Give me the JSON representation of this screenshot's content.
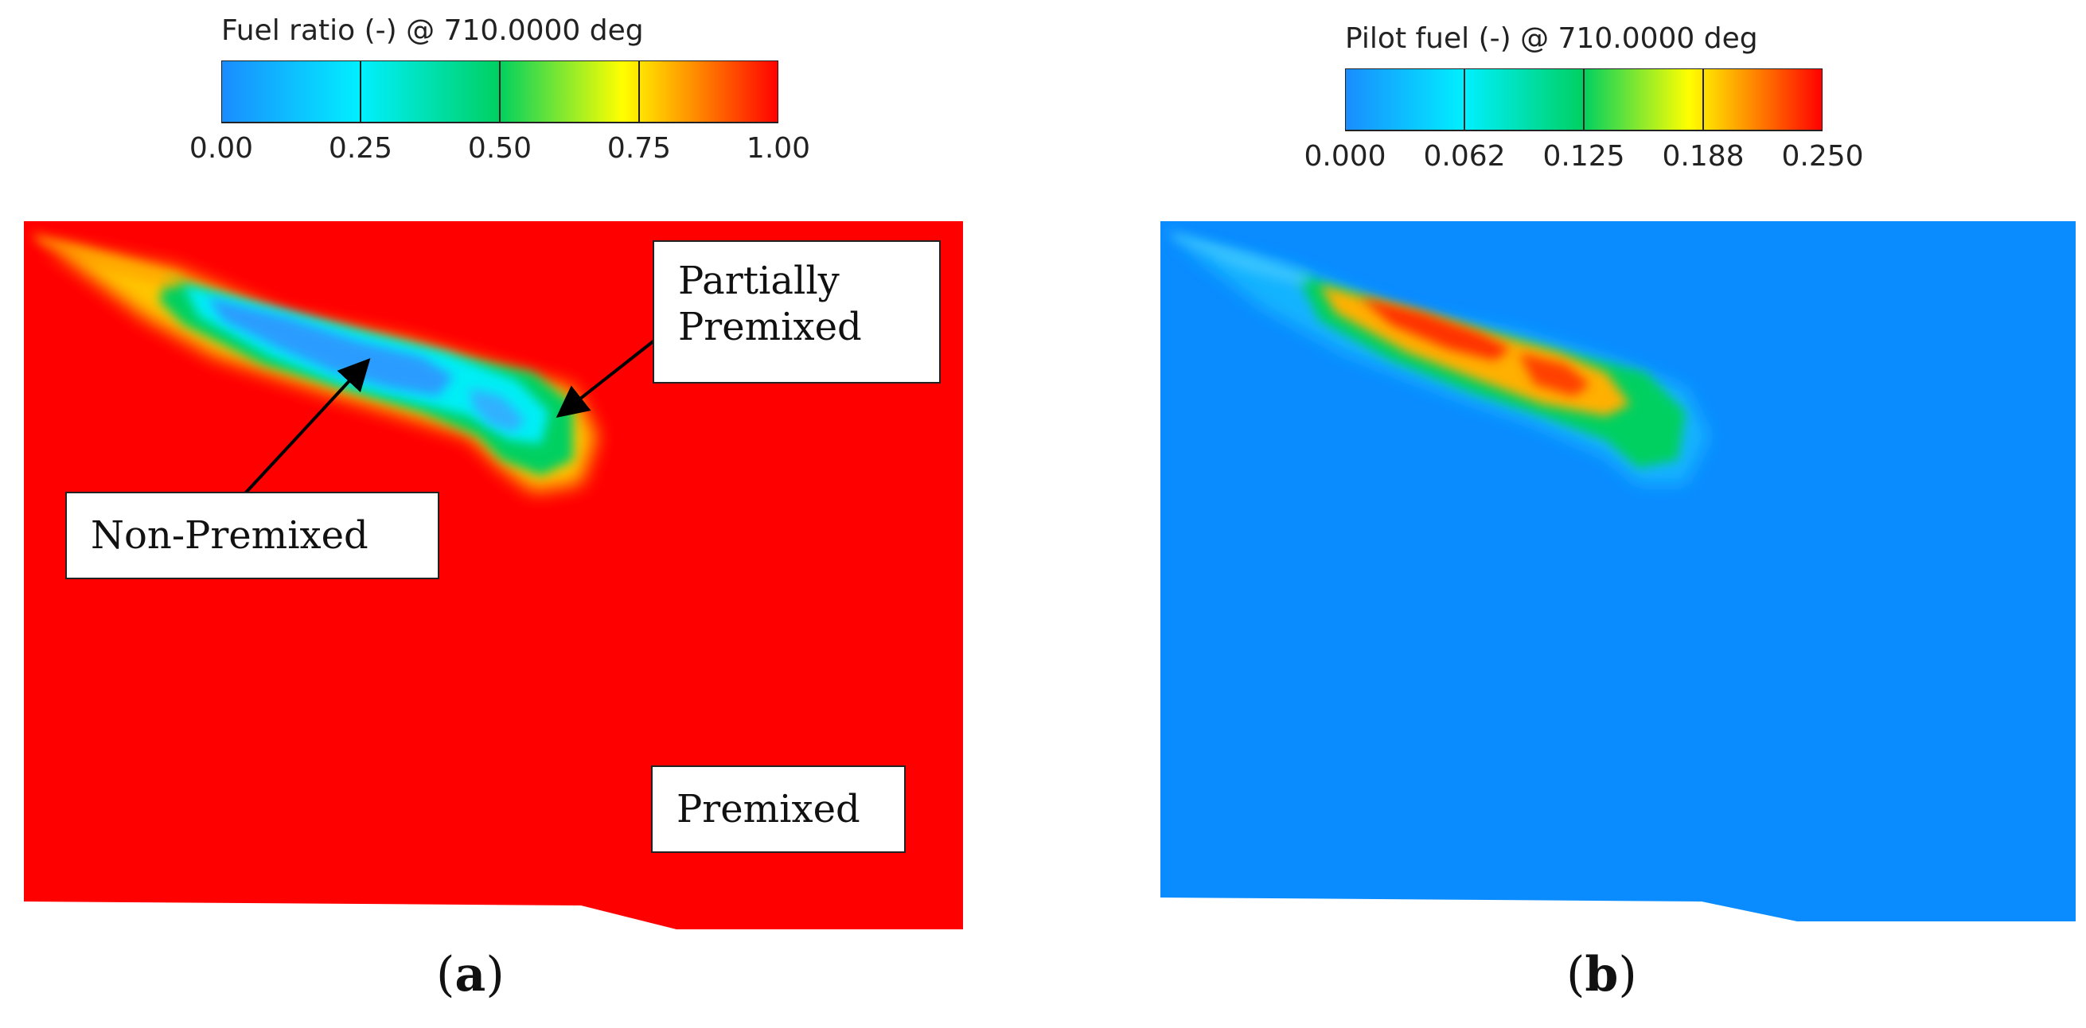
{
  "panel_a": {
    "colorbar": {
      "title": "Fuel ratio (-) @ 710.0000 deg",
      "ticks": [
        "0.00",
        "0.25",
        "0.50",
        "0.75",
        "1.00"
      ]
    },
    "callouts": {
      "partially_premixed_line1": "Partially",
      "partially_premixed_line2": "Premixed",
      "non_premixed": "Non-Premixed",
      "premixed": "Premixed"
    },
    "label_open": "(",
    "label_letter": "a",
    "label_close": ")",
    "background_color": "#ff0000"
  },
  "panel_b": {
    "colorbar": {
      "title": "Pilot fuel (-) @ 710.0000 deg",
      "ticks": [
        "0.000",
        "0.062",
        "0.125",
        "0.188",
        "0.250"
      ]
    },
    "label_open": "(",
    "label_letter": "b",
    "label_close": ")",
    "background_color": "#0a8cff"
  },
  "colormap": [
    "#1a8cff",
    "#00f0ff",
    "#00d060",
    "#ffff00",
    "#ff8000",
    "#ff0000"
  ]
}
